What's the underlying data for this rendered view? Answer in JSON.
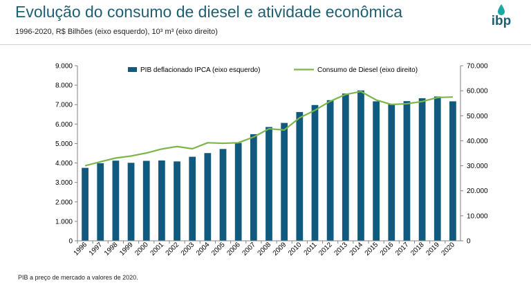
{
  "slide": {
    "title": "Evolução do consumo de diesel e atividade econômica",
    "subtitle": "1996-2020, R$ Bilhões (eixo esquerdo), 10³ m³ (eixo direito)",
    "footnote": "PIB a preço de mercado a valores de 2020.",
    "logo_text": "ibp"
  },
  "colors": {
    "title": "#1e5f72",
    "bar": "#0f5a7e",
    "line": "#7ab648",
    "logo_drop": "#1aa8a0"
  },
  "chart_data": {
    "type": "bar",
    "categories": [
      "1996",
      "1997",
      "1998",
      "1999",
      "2000",
      "2001",
      "2002",
      "2003",
      "2004",
      "2005",
      "2006",
      "2007",
      "2008",
      "2009",
      "2010",
      "2011",
      "2012",
      "2013",
      "2014",
      "2015",
      "2016",
      "2017",
      "2018",
      "2019",
      "2020"
    ],
    "legend_position": "top",
    "grid": false,
    "y_left": {
      "ylim": [
        0,
        9000
      ],
      "ticks": [
        "0",
        "1.000",
        "2.000",
        "3.000",
        "4.000",
        "5.000",
        "6.000",
        "7.000",
        "8.000",
        "9.000"
      ]
    },
    "y_right": {
      "ylim": [
        0,
        70000
      ],
      "ticks": [
        "0",
        "10.000",
        "20.000",
        "30.000",
        "40.000",
        "50.000",
        "60.000",
        "70.000"
      ]
    },
    "series": [
      {
        "name": "PIB deflacionado IPCA (eixo esquerdo)",
        "type": "bar",
        "axis": "left",
        "values": [
          3750,
          3990,
          4120,
          4010,
          4110,
          4130,
          4080,
          4320,
          4510,
          4720,
          5030,
          5480,
          5850,
          6060,
          6620,
          6980,
          7230,
          7570,
          7730,
          7170,
          7010,
          7180,
          7330,
          7420,
          7170
        ]
      },
      {
        "name": "Consumo de Diesel (eixo direito)",
        "type": "line",
        "axis": "right",
        "values": [
          30000,
          31600,
          33100,
          33900,
          35100,
          36700,
          37700,
          36800,
          39200,
          39000,
          39200,
          41500,
          44800,
          44300,
          49200,
          52200,
          55800,
          58500,
          59700,
          56300,
          54500,
          54800,
          55700,
          57300,
          57500
        ]
      }
    ]
  }
}
